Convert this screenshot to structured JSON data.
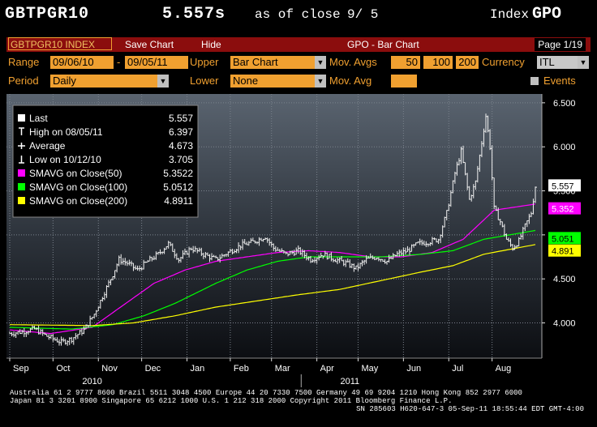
{
  "header": {
    "ticker": "GBTPGR10",
    "value": "5.557s",
    "as_of_label": "as of close",
    "as_of_date": "9/ 5",
    "index_label": "Index",
    "index_code": "GPO"
  },
  "toolbar": {
    "ticker_button": "GBTPGR10 INDEX",
    "save_chart": "Save Chart",
    "hide": "Hide",
    "title": "GPO - Bar Chart",
    "page": "Page 1/19"
  },
  "controls": {
    "range_label": "Range",
    "range_start": "09/06/10",
    "range_dash": "-",
    "range_end": "09/05/11",
    "upper_label": "Upper",
    "upper_value": "Bar Chart",
    "mov_avgs_label": "Mov. Avgs",
    "mov_avg_1": "50",
    "mov_avg_2": "100",
    "mov_avg_3": "200",
    "currency_label": "Currency",
    "currency_value": "ITL",
    "period_label": "Period",
    "period_value": "Daily",
    "lower_label": "Lower",
    "lower_value": "None",
    "mov_avg_label": "Mov. Avg",
    "mov_avg_value": "",
    "events_label": "Events"
  },
  "legend": [
    {
      "label": "Last",
      "value": "5.557",
      "color": "#ffffff",
      "icon": "square"
    },
    {
      "label": "High on 08/05/11",
      "value": "6.397",
      "color": "#ffffff",
      "icon": "high-tick"
    },
    {
      "label": "Average",
      "value": "4.673",
      "color": "#ffffff",
      "icon": "average-cross"
    },
    {
      "label": "Low on 10/12/10",
      "value": "3.705",
      "color": "#ffffff",
      "icon": "low-tick"
    },
    {
      "label": "SMAVG on Close(50)",
      "value": "5.3522",
      "color": "#ff00ff",
      "icon": "square"
    },
    {
      "label": "SMAVG on Close(100)",
      "value": "5.0512",
      "color": "#00ff00",
      "icon": "square"
    },
    {
      "label": "SMAVG on Close(200)",
      "value": "4.8911",
      "color": "#ffff00",
      "icon": "square"
    }
  ],
  "chart_data": {
    "type": "line",
    "ylim": [
      3.6,
      6.6
    ],
    "yticks": [
      "6.500",
      "6.000",
      "5.500",
      "5.000",
      "4.500",
      "4.000"
    ],
    "ytick_values": [
      6.5,
      6.0,
      5.5,
      5.0,
      4.5,
      4.0
    ],
    "xlabels": [
      "Sep",
      "Oct",
      "Nov",
      "Dec",
      "Jan",
      "Feb",
      "Mar",
      "Apr",
      "May",
      "Jun",
      "Jul",
      "Aug"
    ],
    "xlabel_index": [
      0,
      21,
      43,
      64,
      86,
      107,
      127,
      149,
      169,
      191,
      213,
      234
    ],
    "years": [
      {
        "label": "2010",
        "index": 40
      },
      {
        "label": "2011",
        "index": 165
      }
    ],
    "n_points": 256,
    "price_anchors": [
      [
        0,
        3.88
      ],
      [
        6,
        3.9
      ],
      [
        12,
        3.93
      ],
      [
        18,
        3.85
      ],
      [
        25,
        3.78
      ],
      [
        30,
        3.82
      ],
      [
        36,
        3.92
      ],
      [
        41,
        4.1
      ],
      [
        46,
        4.35
      ],
      [
        50,
        4.55
      ],
      [
        53,
        4.72
      ],
      [
        57,
        4.68
      ],
      [
        62,
        4.6
      ],
      [
        67,
        4.7
      ],
      [
        72,
        4.78
      ],
      [
        77,
        4.9
      ],
      [
        82,
        4.72
      ],
      [
        88,
        4.85
      ],
      [
        94,
        4.78
      ],
      [
        100,
        4.72
      ],
      [
        106,
        4.8
      ],
      [
        112,
        4.88
      ],
      [
        118,
        4.92
      ],
      [
        124,
        4.98
      ],
      [
        128,
        4.85
      ],
      [
        134,
        4.78
      ],
      [
        140,
        4.82
      ],
      [
        146,
        4.72
      ],
      [
        152,
        4.78
      ],
      [
        158,
        4.72
      ],
      [
        163,
        4.68
      ],
      [
        168,
        4.62
      ],
      [
        173,
        4.72
      ],
      [
        178,
        4.75
      ],
      [
        183,
        4.7
      ],
      [
        188,
        4.78
      ],
      [
        193,
        4.82
      ],
      [
        198,
        4.9
      ],
      [
        203,
        4.92
      ],
      [
        208,
        4.95
      ],
      [
        212,
        5.25
      ],
      [
        216,
        5.7
      ],
      [
        219,
        5.95
      ],
      [
        223,
        5.4
      ],
      [
        226,
        5.6
      ],
      [
        229,
        6.05
      ],
      [
        231,
        6.35
      ],
      [
        233,
        6.0
      ],
      [
        235,
        5.3
      ],
      [
        238,
        5.15
      ],
      [
        241,
        4.95
      ],
      [
        244,
        4.85
      ],
      [
        247,
        4.93
      ],
      [
        250,
        5.1
      ],
      [
        253,
        5.25
      ],
      [
        255,
        5.55
      ]
    ],
    "series": [
      {
        "name": "SMAVG on Close(50)",
        "color": "#ff00ff",
        "anchors": [
          [
            0,
            3.92
          ],
          [
            20,
            3.88
          ],
          [
            40,
            3.95
          ],
          [
            55,
            4.2
          ],
          [
            70,
            4.45
          ],
          [
            85,
            4.6
          ],
          [
            100,
            4.7
          ],
          [
            115,
            4.75
          ],
          [
            130,
            4.8
          ],
          [
            145,
            4.82
          ],
          [
            160,
            4.8
          ],
          [
            175,
            4.75
          ],
          [
            190,
            4.75
          ],
          [
            205,
            4.8
          ],
          [
            220,
            4.95
          ],
          [
            235,
            5.28
          ],
          [
            255,
            5.35
          ]
        ]
      },
      {
        "name": "SMAVG on Close(100)",
        "color": "#00ff00",
        "anchors": [
          [
            0,
            3.95
          ],
          [
            30,
            3.93
          ],
          [
            50,
            3.98
          ],
          [
            65,
            4.08
          ],
          [
            80,
            4.22
          ],
          [
            100,
            4.45
          ],
          [
            115,
            4.6
          ],
          [
            130,
            4.7
          ],
          [
            145,
            4.75
          ],
          [
            160,
            4.75
          ],
          [
            180,
            4.75
          ],
          [
            200,
            4.78
          ],
          [
            215,
            4.82
          ],
          [
            230,
            4.95
          ],
          [
            255,
            5.05
          ]
        ]
      },
      {
        "name": "SMAVG on Close(200)",
        "color": "#ffff00",
        "anchors": [
          [
            0,
            3.98
          ],
          [
            40,
            3.97
          ],
          [
            60,
            4.0
          ],
          [
            80,
            4.08
          ],
          [
            100,
            4.18
          ],
          [
            120,
            4.25
          ],
          [
            140,
            4.32
          ],
          [
            160,
            4.38
          ],
          [
            180,
            4.48
          ],
          [
            200,
            4.58
          ],
          [
            215,
            4.65
          ],
          [
            230,
            4.78
          ],
          [
            255,
            4.89
          ]
        ]
      }
    ],
    "tags": [
      {
        "label": "5.557",
        "value": 5.557,
        "bg": "#ffffff"
      },
      {
        "label": "5.352",
        "value": 5.352,
        "bg": "#ff00ff"
      },
      {
        "label": "5.051",
        "value": 5.051,
        "bg": "#00ff00"
      },
      {
        "label": "4.891",
        "value": 4.891,
        "bg": "#ffff00"
      }
    ]
  },
  "footer": {
    "line1": "Australia 61 2 9777 8600 Brazil 5511 3048 4500 Europe 44 20 7330 7500 Germany 49 69 9204 1210 Hong Kong 852 2977 6000",
    "line2": "Japan 81 3 3201 8900          Singapore 65 6212 1000          U.S. 1 212 318 2000          Copyright 2011 Bloomberg Finance L.P.",
    "line3": "SN 285603 H620-647-3 05-Sep-11 18:55:44 EDT  GMT-4:00"
  }
}
